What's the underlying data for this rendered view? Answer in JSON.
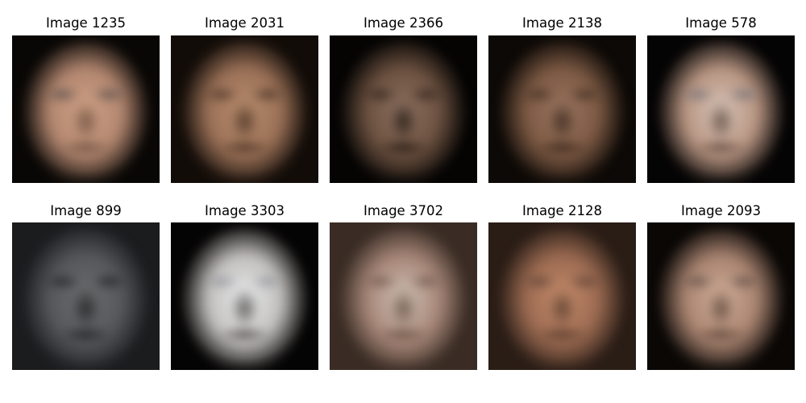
{
  "figure": {
    "panels": [
      {
        "title": "Image 1235",
        "palette": {
          "bg": "#090705",
          "skin": "#b38770",
          "light": "#cfa186",
          "dark": "#5e4333",
          "eyes": "#4f4a4a"
        }
      },
      {
        "title": "Image 2031",
        "palette": {
          "bg": "#120c08",
          "skin": "#9c7258",
          "light": "#b78b6c",
          "dark": "#3a2618",
          "eyes": "#3f2c22"
        }
      },
      {
        "title": "Image 2366",
        "palette": {
          "bg": "#050403",
          "skin": "#6d5241",
          "light": "#8c7060",
          "dark": "#140d08",
          "eyes": "#2a1f18"
        }
      },
      {
        "title": "Image 2138",
        "palette": {
          "bg": "#0d0906",
          "skin": "#7d5a44",
          "light": "#9a7560",
          "dark": "#2a1b12",
          "eyes": "#3a2a20"
        }
      },
      {
        "title": "Image 578",
        "palette": {
          "bg": "#050404",
          "skin": "#b89582",
          "light": "#d7c4b8",
          "dark": "#4e3a31",
          "eyes": "#6d6f77"
        }
      },
      {
        "title": "Image 899",
        "palette": {
          "bg": "#1b1c1e",
          "skin": "#56595d",
          "light": "#6a6b6c",
          "dark": "#151618",
          "eyes": "#1b1b1d"
        }
      },
      {
        "title": "Image 3303",
        "palette": {
          "bg": "#050404",
          "skin": "#c3c1be",
          "light": "#e6e8ea",
          "dark": "#3a3533",
          "eyes": "#8d8f99"
        }
      },
      {
        "title": "Image 3702",
        "palette": {
          "bg": "#3a2c24",
          "skin": "#a8887a",
          "light": "#cdbfb3",
          "dark": "#5a4436",
          "eyes": "#6a5448"
        }
      },
      {
        "title": "Image 2128",
        "palette": {
          "bg": "#2a1d16",
          "skin": "#9c6b52",
          "light": "#c48b6a",
          "dark": "#4a3125",
          "eyes": "#5a4034"
        }
      },
      {
        "title": "Image 2093",
        "palette": {
          "bg": "#0a0705",
          "skin": "#a98471",
          "light": "#cfae99",
          "dark": "#50382c",
          "eyes": "#5a4a44"
        }
      }
    ]
  }
}
